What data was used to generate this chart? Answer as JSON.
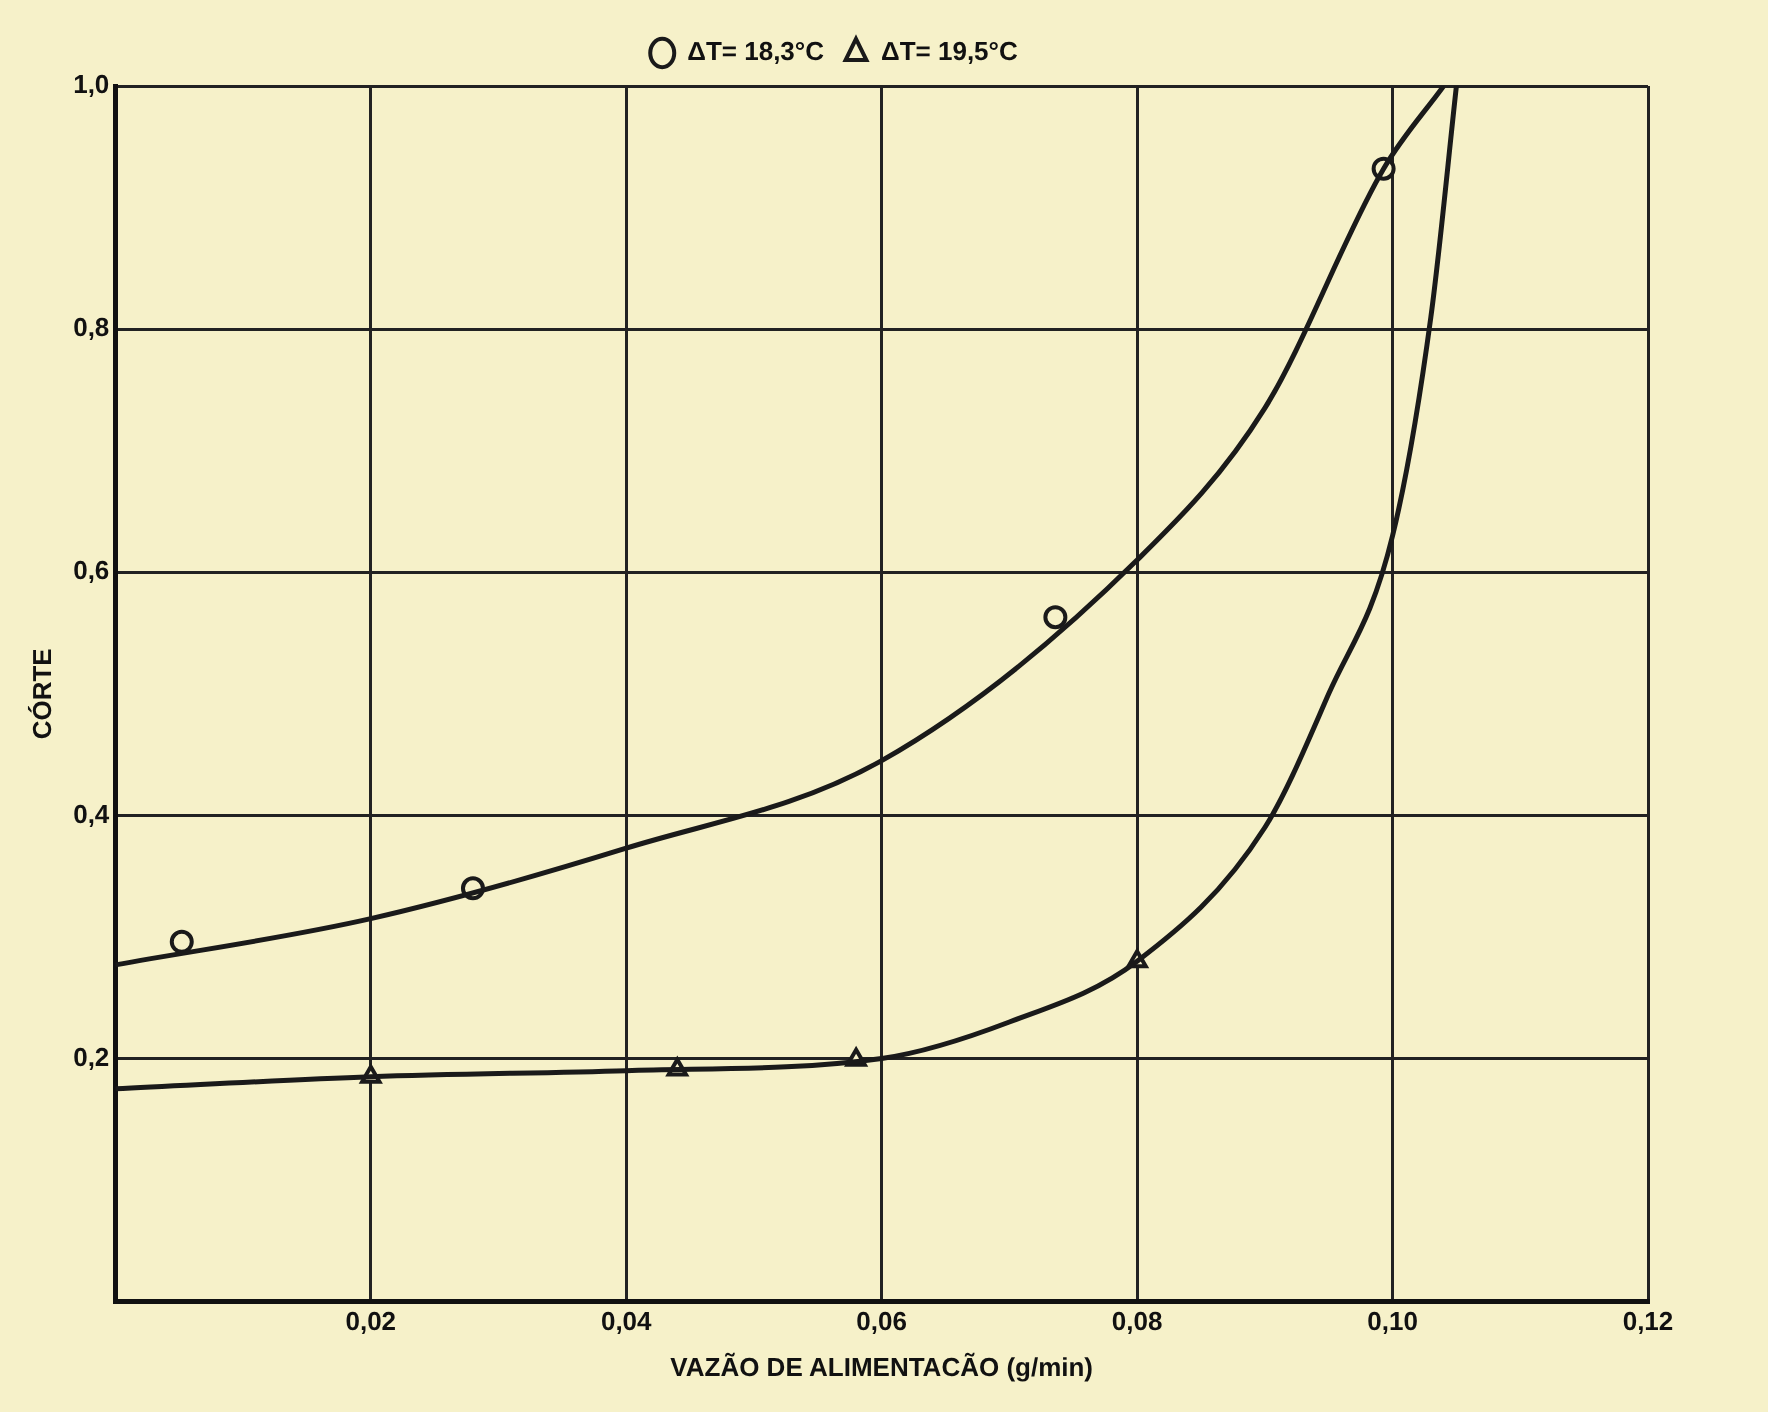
{
  "chart_data": {
    "type": "line",
    "xlabel": "VAZÃO DE ALIMENTACÃO (g/min)",
    "ylabel": "CÓRTE",
    "xlim": [
      0,
      0.12
    ],
    "ylim": [
      0,
      1
    ],
    "xticks": [
      {
        "value": 0,
        "label": null
      },
      {
        "value": 0.02,
        "label": "0,02"
      },
      {
        "value": 0.04,
        "label": "0,04"
      },
      {
        "value": 0.06,
        "label": "0,06"
      },
      {
        "value": 0.08,
        "label": "0,08"
      },
      {
        "value": 0.1,
        "label": "0,10"
      },
      {
        "value": 0.12,
        "label": "0,12"
      }
    ],
    "yticks": [
      {
        "value": 0,
        "label": null
      },
      {
        "value": 0.2,
        "label": "0,2"
      },
      {
        "value": 0.4,
        "label": "0,4"
      },
      {
        "value": 0.6,
        "label": "0,6"
      },
      {
        "value": 0.8,
        "label": "0,8"
      },
      {
        "value": 1,
        "label": "1,0"
      }
    ],
    "grid": true,
    "legend": "top",
    "line_style": "solid",
    "series": [
      {
        "type": "line",
        "color": "#1a1a1a",
        "marker": "none",
        "x": [
          0,
          0.02,
          0.04,
          0.06,
          0.08,
          0.09,
          0.0993,
          0.104
        ],
        "values": [
          0.277,
          0.315,
          0.373,
          0.445,
          0.61,
          0.735,
          0.932,
          1.0
        ]
      },
      {
        "type": "line",
        "color": "#1a1a1a",
        "marker": "none",
        "x": [
          0,
          0.02,
          0.04,
          0.06,
          0.07,
          0.08,
          0.09,
          0.095,
          0.1,
          0.103,
          0.105
        ],
        "values": [
          0.175,
          0.185,
          0.19,
          0.2,
          0.23,
          0.28,
          0.39,
          0.5,
          0.63,
          0.81,
          1.0
        ]
      },
      {
        "type": "scatter",
        "name": "ΔT= 18,3°C",
        "color": "#1a1a1a",
        "marker": "circle",
        "x": [
          0.0052,
          0.028,
          0.0736,
          0.0993
        ],
        "values": [
          0.296,
          0.34,
          0.563,
          0.932
        ]
      },
      {
        "type": "scatter",
        "name": "ΔT= 19,5°C",
        "color": "#1a1a1a",
        "marker": "triangle",
        "x": [
          0.02,
          0.044,
          0.058,
          0.08
        ],
        "values": [
          0.185,
          0.191,
          0.199,
          0.28
        ]
      }
    ]
  }
}
